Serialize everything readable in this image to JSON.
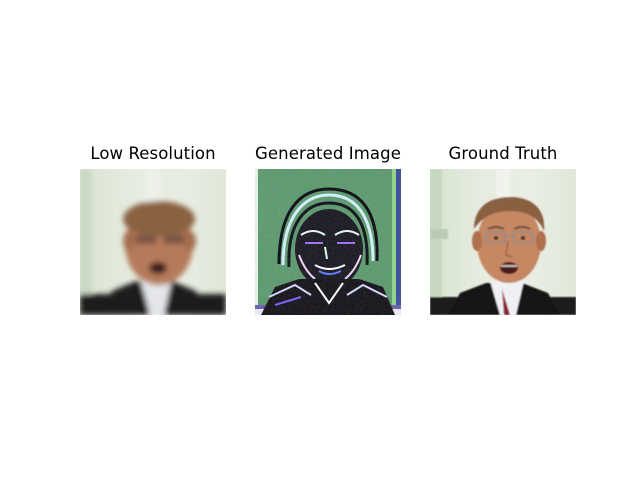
{
  "panels": [
    {
      "title": "Low Resolution"
    },
    {
      "title": "Generated Image"
    },
    {
      "title": "Ground Truth"
    }
  ]
}
